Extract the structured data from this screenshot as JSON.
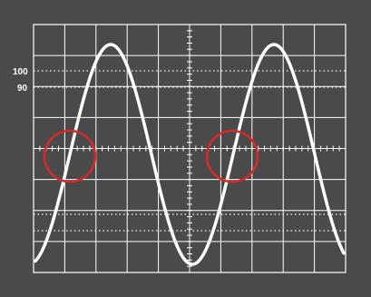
{
  "scope": {
    "label_100": "100",
    "label_90": "90",
    "colors": {
      "background": "#4a4a4a",
      "grid": "#ffffff",
      "trace": "#ffffff",
      "marker": "#d42a2a"
    },
    "graticule": {
      "divisions_x": 10,
      "divisions_y": 8,
      "reference_lines": [
        "100%",
        "90%",
        "10%",
        "0%"
      ]
    },
    "markers": [
      {
        "name": "crossing-marker-1",
        "shape": "circle",
        "color": "#d42a2a"
      },
      {
        "name": "crossing-marker-2",
        "shape": "circle",
        "color": "#d42a2a"
      }
    ],
    "trace": {
      "type": "sine",
      "visible_cycles": 2
    }
  }
}
